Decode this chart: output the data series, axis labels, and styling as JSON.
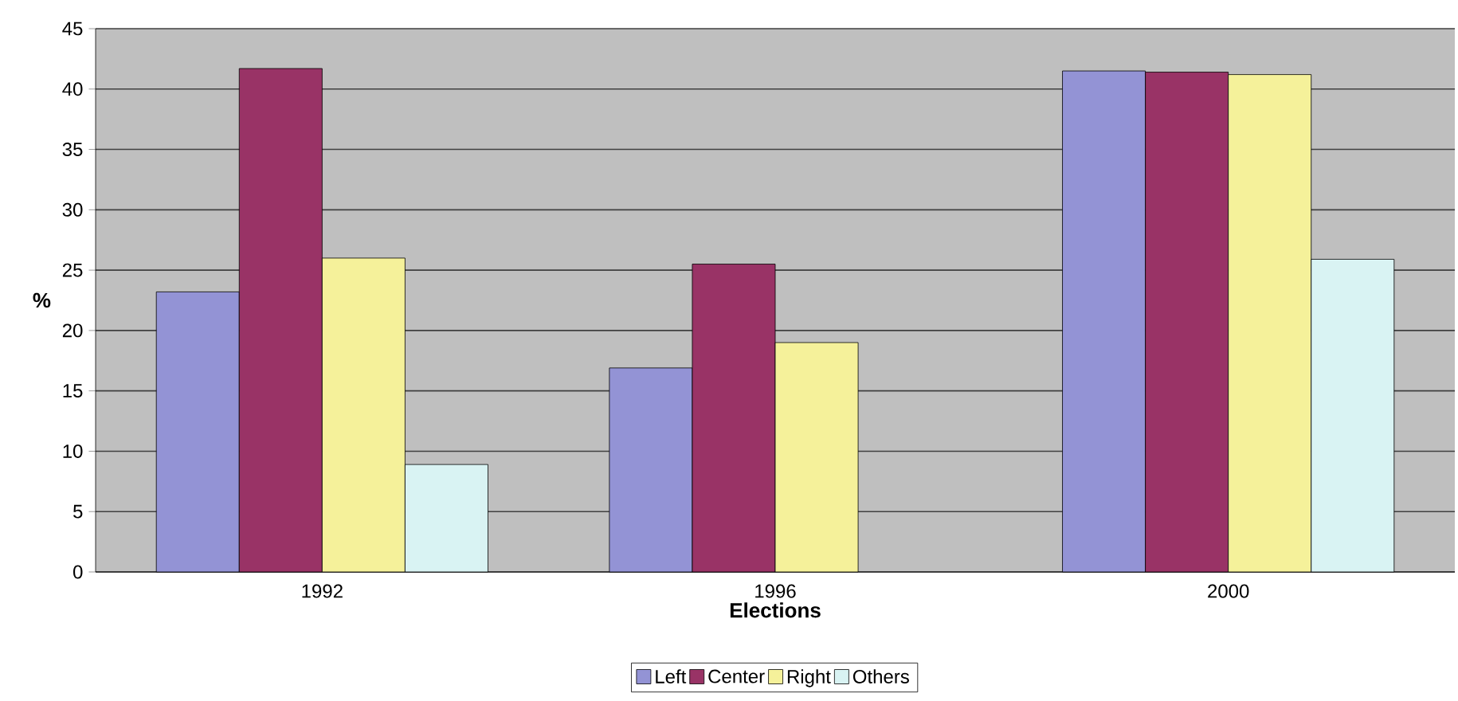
{
  "chart_data": {
    "type": "bar",
    "xlabel": "Elections",
    "ylabel": "%",
    "categories": [
      "1992",
      "1996",
      "2000"
    ],
    "series": [
      {
        "name": "Left",
        "color": "#9393d5",
        "values": [
          23.2,
          16.9,
          41.5
        ]
      },
      {
        "name": "Center",
        "color": "#993366",
        "values": [
          41.7,
          25.5,
          41.4
        ]
      },
      {
        "name": "Right",
        "color": "#f5f19a",
        "values": [
          26.0,
          19.0,
          41.2
        ]
      },
      {
        "name": "Others",
        "color": "#d9f3f3",
        "values": [
          8.9,
          null,
          25.9
        ]
      }
    ],
    "ylim": [
      0,
      45
    ],
    "yticks": [
      0,
      5,
      10,
      15,
      20,
      25,
      30,
      35,
      40,
      45
    ],
    "grid": "y",
    "legend": "bottom"
  }
}
